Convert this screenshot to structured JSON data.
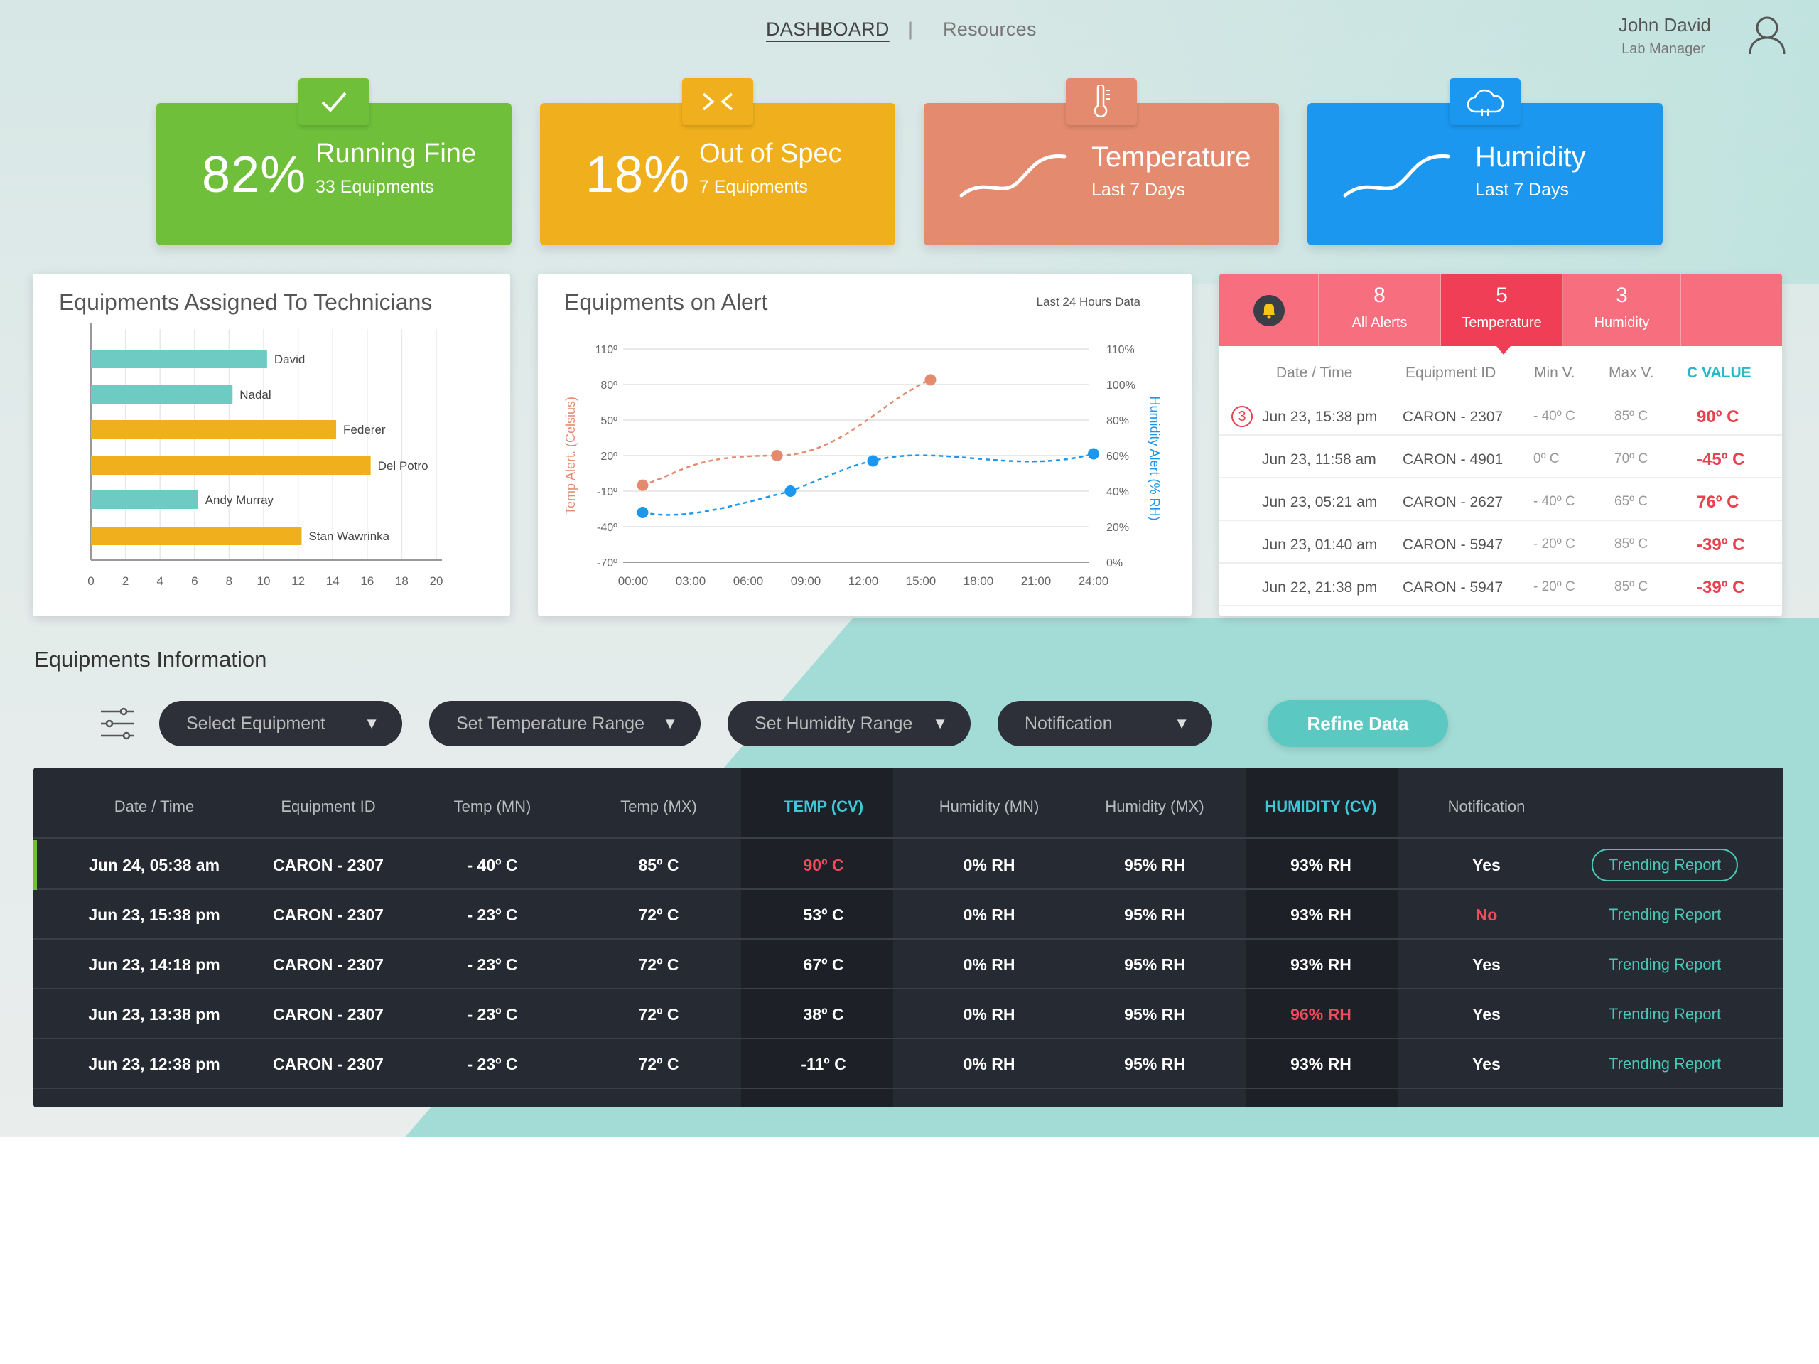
{
  "nav": {
    "dashboard": "DASHBOARD",
    "separator": "|",
    "resources": "Resources"
  },
  "user": {
    "name": "John David",
    "role": "Lab Manager"
  },
  "kpis": {
    "running": {
      "percent": "82%",
      "title": "Running Fine",
      "sub": "33 Equipments",
      "color": "#6fbf3a"
    },
    "spec": {
      "percent": "18%",
      "title": "Out of Spec",
      "sub": "7 Equipments",
      "color": "#f0b01d"
    },
    "temperature": {
      "title": "Temperature",
      "sub": "Last 7 Days",
      "color": "#e48b6f"
    },
    "humidity": {
      "title": "Humidity",
      "sub": "Last 7 Days",
      "color": "#1b97ef"
    }
  },
  "technicians_panel": {
    "title": "Equipments Assigned To Technicians"
  },
  "alert_panel": {
    "title": "Equipments on Alert",
    "note": "Last 24 Hours Data"
  },
  "alerts": {
    "tabs": [
      {
        "count": "8",
        "label": "All Alerts"
      },
      {
        "count": "5",
        "label": "Temperature"
      },
      {
        "count": "3",
        "label": "Humidity"
      }
    ],
    "headers": [
      "Date / Time",
      "Equipment ID",
      "Min V.",
      "Max V.",
      "C VALUE"
    ],
    "badge": "3",
    "rows": [
      {
        "time": "Jun 23, 15:38 pm",
        "id": "CARON - 2307",
        "min": "- 40º C",
        "max": "85º C",
        "cv": "90º C"
      },
      {
        "time": "Jun 23, 11:58 am",
        "id": "CARON - 4901",
        "min": "0º C",
        "max": "70º C",
        "cv": "-45º C"
      },
      {
        "time": "Jun 23, 05:21 am",
        "id": "CARON - 2627",
        "min": "- 40º C",
        "max": "65º C",
        "cv": "76º C"
      },
      {
        "time": "Jun 23, 01:40 am",
        "id": "CARON - 5947",
        "min": "- 20º C",
        "max": "85º C",
        "cv": "-39º C"
      },
      {
        "time": "Jun 22, 21:38 pm",
        "id": "CARON - 5947",
        "min": "- 20º C",
        "max": "85º C",
        "cv": "-39º C"
      }
    ]
  },
  "equipment_info": {
    "title": "Equipments Information",
    "filters": [
      "Select Equipment",
      "Set Temperature Range",
      "Set Humidity Range",
      "Notification"
    ],
    "refine": "Refine Data",
    "headers": [
      "Date / Time",
      "Equipment ID",
      "Temp (MN)",
      "Temp (MX)",
      "TEMP (CV)",
      "Humidity (MN)",
      "Humidity (MX)",
      "HUMIDITY (CV)",
      "Notification"
    ],
    "rows": [
      {
        "time": "Jun 24, 05:38 am",
        "id": "CARON - 2307",
        "tmn": "- 40º C",
        "tmx": "85º C",
        "tcv": "90º C",
        "hmn": "0% RH",
        "hmx": "95% RH",
        "hcv": "93% RH",
        "notif": "Yes",
        "report": "Trending Report"
      },
      {
        "time": "Jun 23, 15:38 pm",
        "id": "CARON - 2307",
        "tmn": "- 23º C",
        "tmx": "72º C",
        "tcv": "53º C",
        "hmn": "0% RH",
        "hmx": "95% RH",
        "hcv": "93% RH",
        "notif": "No",
        "report": "Trending Report"
      },
      {
        "time": "Jun 23, 14:18 pm",
        "id": "CARON - 2307",
        "tmn": "- 23º C",
        "tmx": "72º C",
        "tcv": "67º C",
        "hmn": "0% RH",
        "hmx": "95% RH",
        "hcv": "93% RH",
        "notif": "Yes",
        "report": "Trending Report"
      },
      {
        "time": "Jun 23, 13:38 pm",
        "id": "CARON - 2307",
        "tmn": "- 23º C",
        "tmx": "72º C",
        "tcv": "38º C",
        "hmn": "0% RH",
        "hmx": "95% RH",
        "hcv": "96% RH",
        "notif": "Yes",
        "report": "Trending Report"
      },
      {
        "time": "Jun 23, 12:38 pm",
        "id": "CARON - 2307",
        "tmn": "- 23º C",
        "tmx": "72º C",
        "tcv": "-11º C",
        "hmn": "0% RH",
        "hmx": "95% RH",
        "hcv": "93% RH",
        "notif": "Yes",
        "report": "Trending Report"
      }
    ]
  },
  "chart_data": [
    {
      "type": "bar",
      "orientation": "horizontal",
      "categories": [
        "David",
        "Nadal",
        "Federer",
        "Del Potro",
        "Andy Murray",
        "Stan Wawrinka"
      ],
      "values": [
        10.2,
        8.2,
        14.2,
        16.2,
        6.2,
        12.2
      ],
      "colors": [
        "#6dcbc4",
        "#6dcbc4",
        "#f0b01d",
        "#f0b01d",
        "#6dcbc4",
        "#f0b01d"
      ],
      "xlim": [
        0,
        20
      ],
      "xticks": [
        "0",
        "2",
        "4",
        "6",
        "8",
        "10",
        "12",
        "14",
        "16",
        "18",
        "20"
      ],
      "grid": true
    },
    {
      "type": "line",
      "x": [
        "00:00",
        "03:00",
        "06:00",
        "09:00",
        "12:00",
        "15:00",
        "18:00",
        "21:00",
        "24:00"
      ],
      "ylabel": "Temp Alert. (Celsius)",
      "y2label": "Humidity Alert (% RH)",
      "yticks": [
        "110º",
        "80º",
        "50º",
        "20º",
        "-10º",
        "-40º",
        "-70º"
      ],
      "y2ticks": [
        "110%",
        "100%",
        "80%",
        "60%",
        "40%",
        "20%",
        "0%"
      ],
      "series": [
        {
          "axis": "left",
          "color": "#e48b6f",
          "x": [
            0.5,
            7.5,
            15.5
          ],
          "values": [
            -5,
            20,
            84
          ]
        },
        {
          "axis": "right",
          "color": "#1b97ef",
          "x": [
            0.5,
            8.2,
            12.5,
            24
          ],
          "values": [
            28,
            40,
            57,
            61
          ]
        }
      ]
    }
  ]
}
